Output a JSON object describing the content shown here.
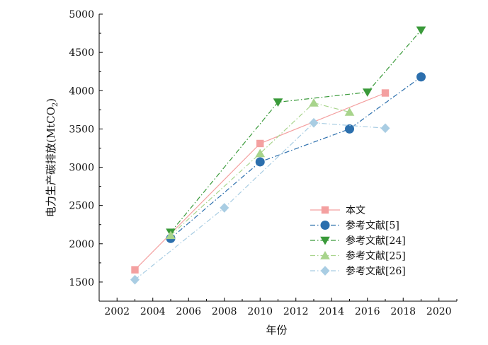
{
  "chart_data": {
    "type": "line",
    "title": "",
    "xlabel": "年份",
    "ylabel": "电力生产碳排放(MtCO",
    "ylabel_sub": "2",
    "ylabel_end": ")",
    "xlim": [
      2001,
      2021
    ],
    "ylim": [
      1250,
      5000
    ],
    "xticks": [
      2002,
      2004,
      2006,
      2008,
      2010,
      2012,
      2014,
      2016,
      2018,
      2020
    ],
    "yticks": [
      1500,
      2000,
      2500,
      3000,
      3500,
      4000,
      4500,
      5000
    ],
    "grid": false,
    "legend_position": "bottom-right",
    "series": [
      {
        "name": "本文",
        "color": "#f4a0a0",
        "marker": "square",
        "dash": "solid",
        "points": [
          [
            2003,
            1660
          ],
          [
            2010,
            3310
          ],
          [
            2017,
            3970
          ]
        ]
      },
      {
        "name": "参考文献[5]",
        "color": "#2c6fad",
        "marker": "circle",
        "dash": "dashdot",
        "points": [
          [
            2005,
            2070
          ],
          [
            2010,
            3070
          ],
          [
            2015,
            3500
          ],
          [
            2019,
            4180
          ]
        ]
      },
      {
        "name": "参考文献[24]",
        "color": "#3a9a3a",
        "marker": "triangle-down",
        "dash": "dashdot",
        "points": [
          [
            2005,
            2150
          ],
          [
            2011,
            3850
          ],
          [
            2016,
            3980
          ],
          [
            2019,
            4790
          ]
        ]
      },
      {
        "name": "参考文献[25]",
        "color": "#a8d48c",
        "marker": "triangle-up",
        "dash": "dashdot",
        "points": [
          [
            2005,
            2110
          ],
          [
            2010,
            3180
          ],
          [
            2013,
            3840
          ],
          [
            2015,
            3720
          ]
        ]
      },
      {
        "name": "参考文献[26]",
        "color": "#a9cde3",
        "marker": "diamond",
        "dash": "dashdot",
        "points": [
          [
            2003,
            1530
          ],
          [
            2008,
            2470
          ],
          [
            2013,
            3580
          ],
          [
            2017,
            3510
          ]
        ]
      }
    ]
  }
}
